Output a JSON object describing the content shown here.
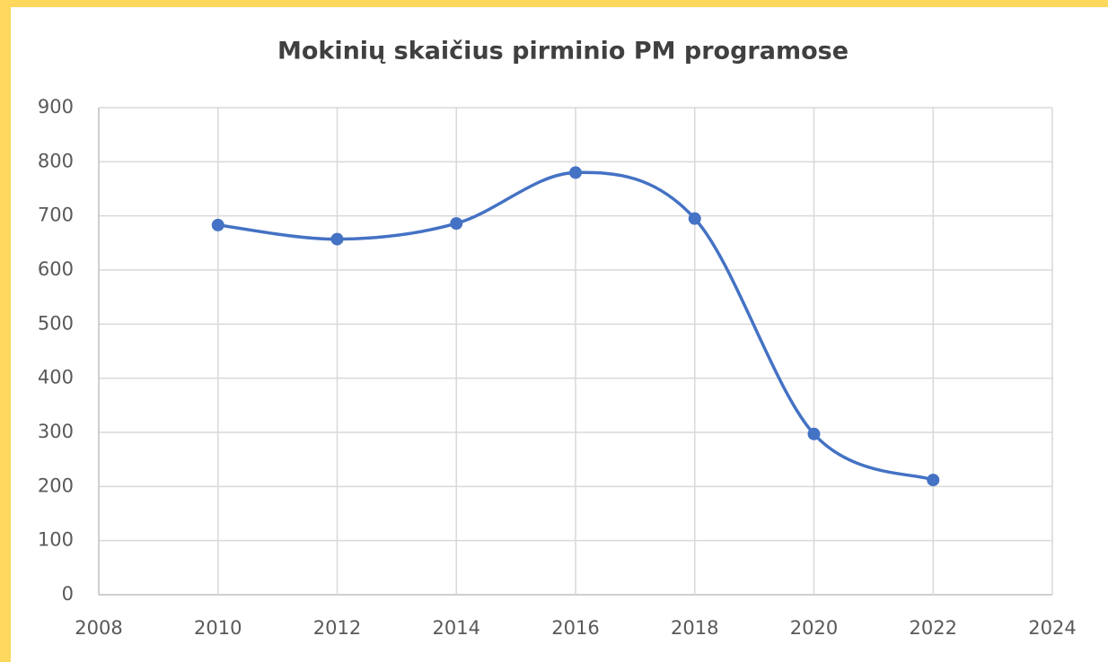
{
  "chart_data": {
    "type": "line",
    "title": "Mokinių skaičius pirminio PM programose",
    "x": [
      2010,
      2012,
      2014,
      2016,
      2018,
      2020,
      2022
    ],
    "values": [
      683,
      657,
      686,
      780,
      695,
      297,
      212
    ],
    "color": "#4472c4",
    "smooth": true,
    "grid": true,
    "xlim": [
      2008,
      2024
    ],
    "xticks": [
      2008,
      2010,
      2012,
      2014,
      2016,
      2018,
      2020,
      2022,
      2024
    ],
    "ylim": [
      0,
      900
    ],
    "yticks": [
      0,
      100,
      200,
      300,
      400,
      500,
      600,
      700,
      800,
      900
    ]
  }
}
